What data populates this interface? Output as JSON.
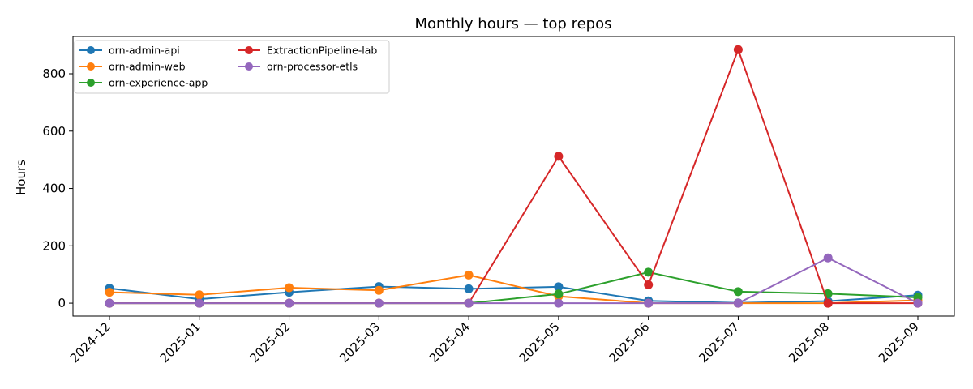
{
  "chart_data": {
    "type": "line",
    "title": "Monthly hours — top repos",
    "xlabel": "",
    "ylabel": "Hours",
    "categories": [
      "2024-12",
      "2025-01",
      "2025-02",
      "2025-03",
      "2025-04",
      "2025-05",
      "2025-06",
      "2025-07",
      "2025-08",
      "2025-09"
    ],
    "ylim": [
      -45,
      930
    ],
    "yticks": [
      0,
      200,
      400,
      600,
      800
    ],
    "grid": false,
    "legend_position": "top-left",
    "legend_columns": 2,
    "series": [
      {
        "name": "orn-admin-api",
        "color": "#1f77b4",
        "values": [
          52,
          14,
          38,
          58,
          50,
          57,
          8,
          1,
          7,
          28
        ]
      },
      {
        "name": "orn-admin-web",
        "color": "#ff7f0e",
        "values": [
          38,
          29,
          54,
          45,
          98,
          24,
          0,
          0,
          0,
          10
        ]
      },
      {
        "name": "orn-experience-app",
        "color": "#2ca02c",
        "values": [
          0,
          0,
          0,
          0,
          0,
          32,
          108,
          40,
          33,
          20
        ]
      },
      {
        "name": "ExtractionPipeline-lab",
        "color": "#d62728",
        "values": [
          0,
          0,
          0,
          0,
          0,
          512,
          64,
          884,
          0,
          0
        ]
      },
      {
        "name": "orn-processor-etls",
        "color": "#9467bd",
        "values": [
          0,
          0,
          0,
          0,
          0,
          0,
          0,
          0,
          158,
          0
        ]
      }
    ]
  }
}
